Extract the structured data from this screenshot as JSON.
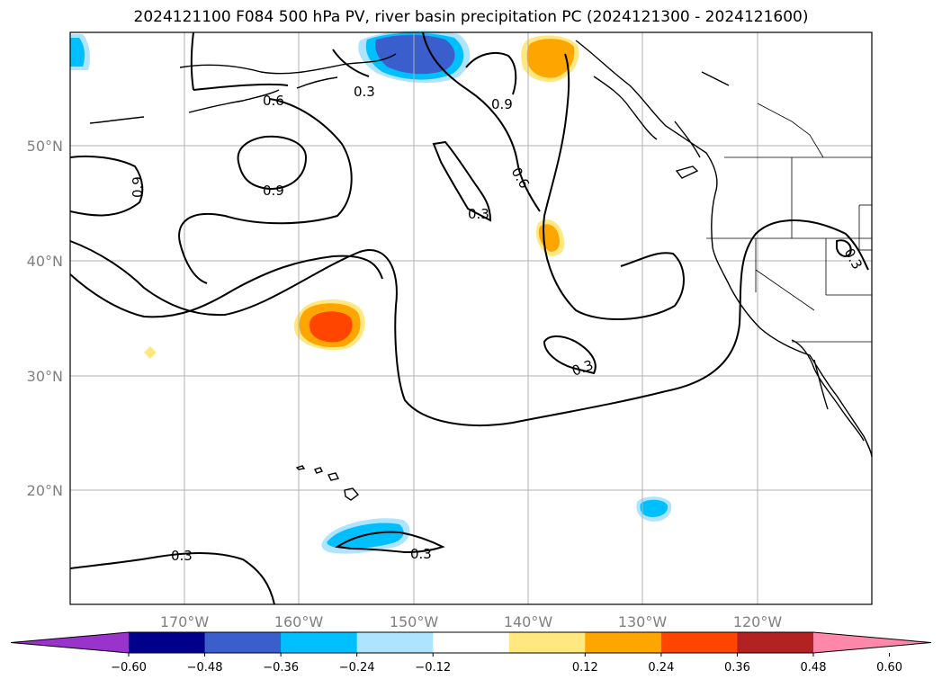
{
  "title": "2024121100 F084 500 hPa PV, river basin precipitation PC (2024121300 - 2024121600)",
  "lon_labels": [
    "170°W",
    "160°W",
    "150°W",
    "140°W",
    "130°W",
    "120°W"
  ],
  "lat_labels": [
    "50°N",
    "40°N",
    "30°N",
    "20°N"
  ],
  "contour_labels": [
    "0.3",
    "0.6",
    "0.9",
    "0.9",
    "0.9",
    "0.3",
    "0.6",
    "0.3",
    "0.3",
    "0.3",
    "0.3",
    "0.3"
  ],
  "colorbar": {
    "ticks": [
      "−0.60",
      "−0.48",
      "−0.36",
      "−0.24",
      "−0.12",
      "0.12",
      "0.24",
      "0.36",
      "0.48",
      "0.60"
    ],
    "colors": [
      "#9933cc",
      "#00008b",
      "#3a5fcd",
      "#00bfff",
      "#aee4ff",
      "#ffffff",
      "#ffe880",
      "#ffa500",
      "#ff4500",
      "#b22222",
      "#ff88aa"
    ]
  },
  "colors": {
    "grid": "#b0b0b0",
    "tick_label": "#808080",
    "contour": "#000000"
  }
}
